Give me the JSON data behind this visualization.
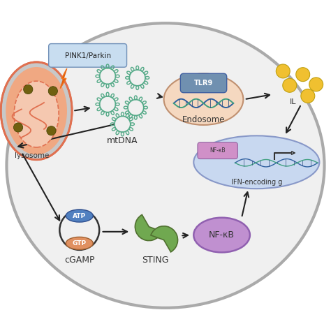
{
  "cell_facecolor": "#f0f0f0",
  "cell_edgecolor": "#aaaaaa",
  "bg_color": "#ffffff",
  "pink1_box_color": "#c8ddf0",
  "pink1_text": "PINK1/Parkin",
  "mito_outer_color": "#f0a882",
  "mito_outer_edge": "#e07050",
  "mito_inner_color": "#f5c8b0",
  "mito_inner_edge": "#e07050",
  "mito_gray_color": "#d0d0d0",
  "crista_color": "#e8c0a8",
  "dot_color": "#706010",
  "mtdna_ring_color": "#55aa88",
  "mtdna_tick_color": "#55aa88",
  "mtdna_label": "mtDNA",
  "endosome_face": "#f5d8c0",
  "endosome_edge": "#c09070",
  "tlr9_face": "#7090b0",
  "tlr9_edge": "#4060a0",
  "dna_strand1": "#3060a0",
  "dna_strand2": "#40a080",
  "endosome_label": "Endosome",
  "tlr9_label": "TLR9",
  "il_dot_color": "#f0c030",
  "il_label": "IL",
  "ifn_face": "#c8d8f0",
  "ifn_edge": "#8898c8",
  "nfkb_small_face": "#d090c8",
  "nfkb_small_edge": "#9060a0",
  "ifn_label": "IFN-encoding g",
  "cgamp_ring_edge": "#333333",
  "atp_face": "#5080c0",
  "atp_edge": "#305090",
  "gtp_face": "#e09060",
  "gtp_edge": "#a06030",
  "cgamp_label": "cGAMP",
  "sting_face": "#70a850",
  "sting_edge": "#507030",
  "sting_label": "STING",
  "nfkb_face": "#c090d0",
  "nfkb_edge": "#9060b0",
  "nfkb_label": "NF-κB",
  "lysosome_label": "lysosome",
  "arrow_color": "#222222",
  "lightning_color": "#e06010"
}
